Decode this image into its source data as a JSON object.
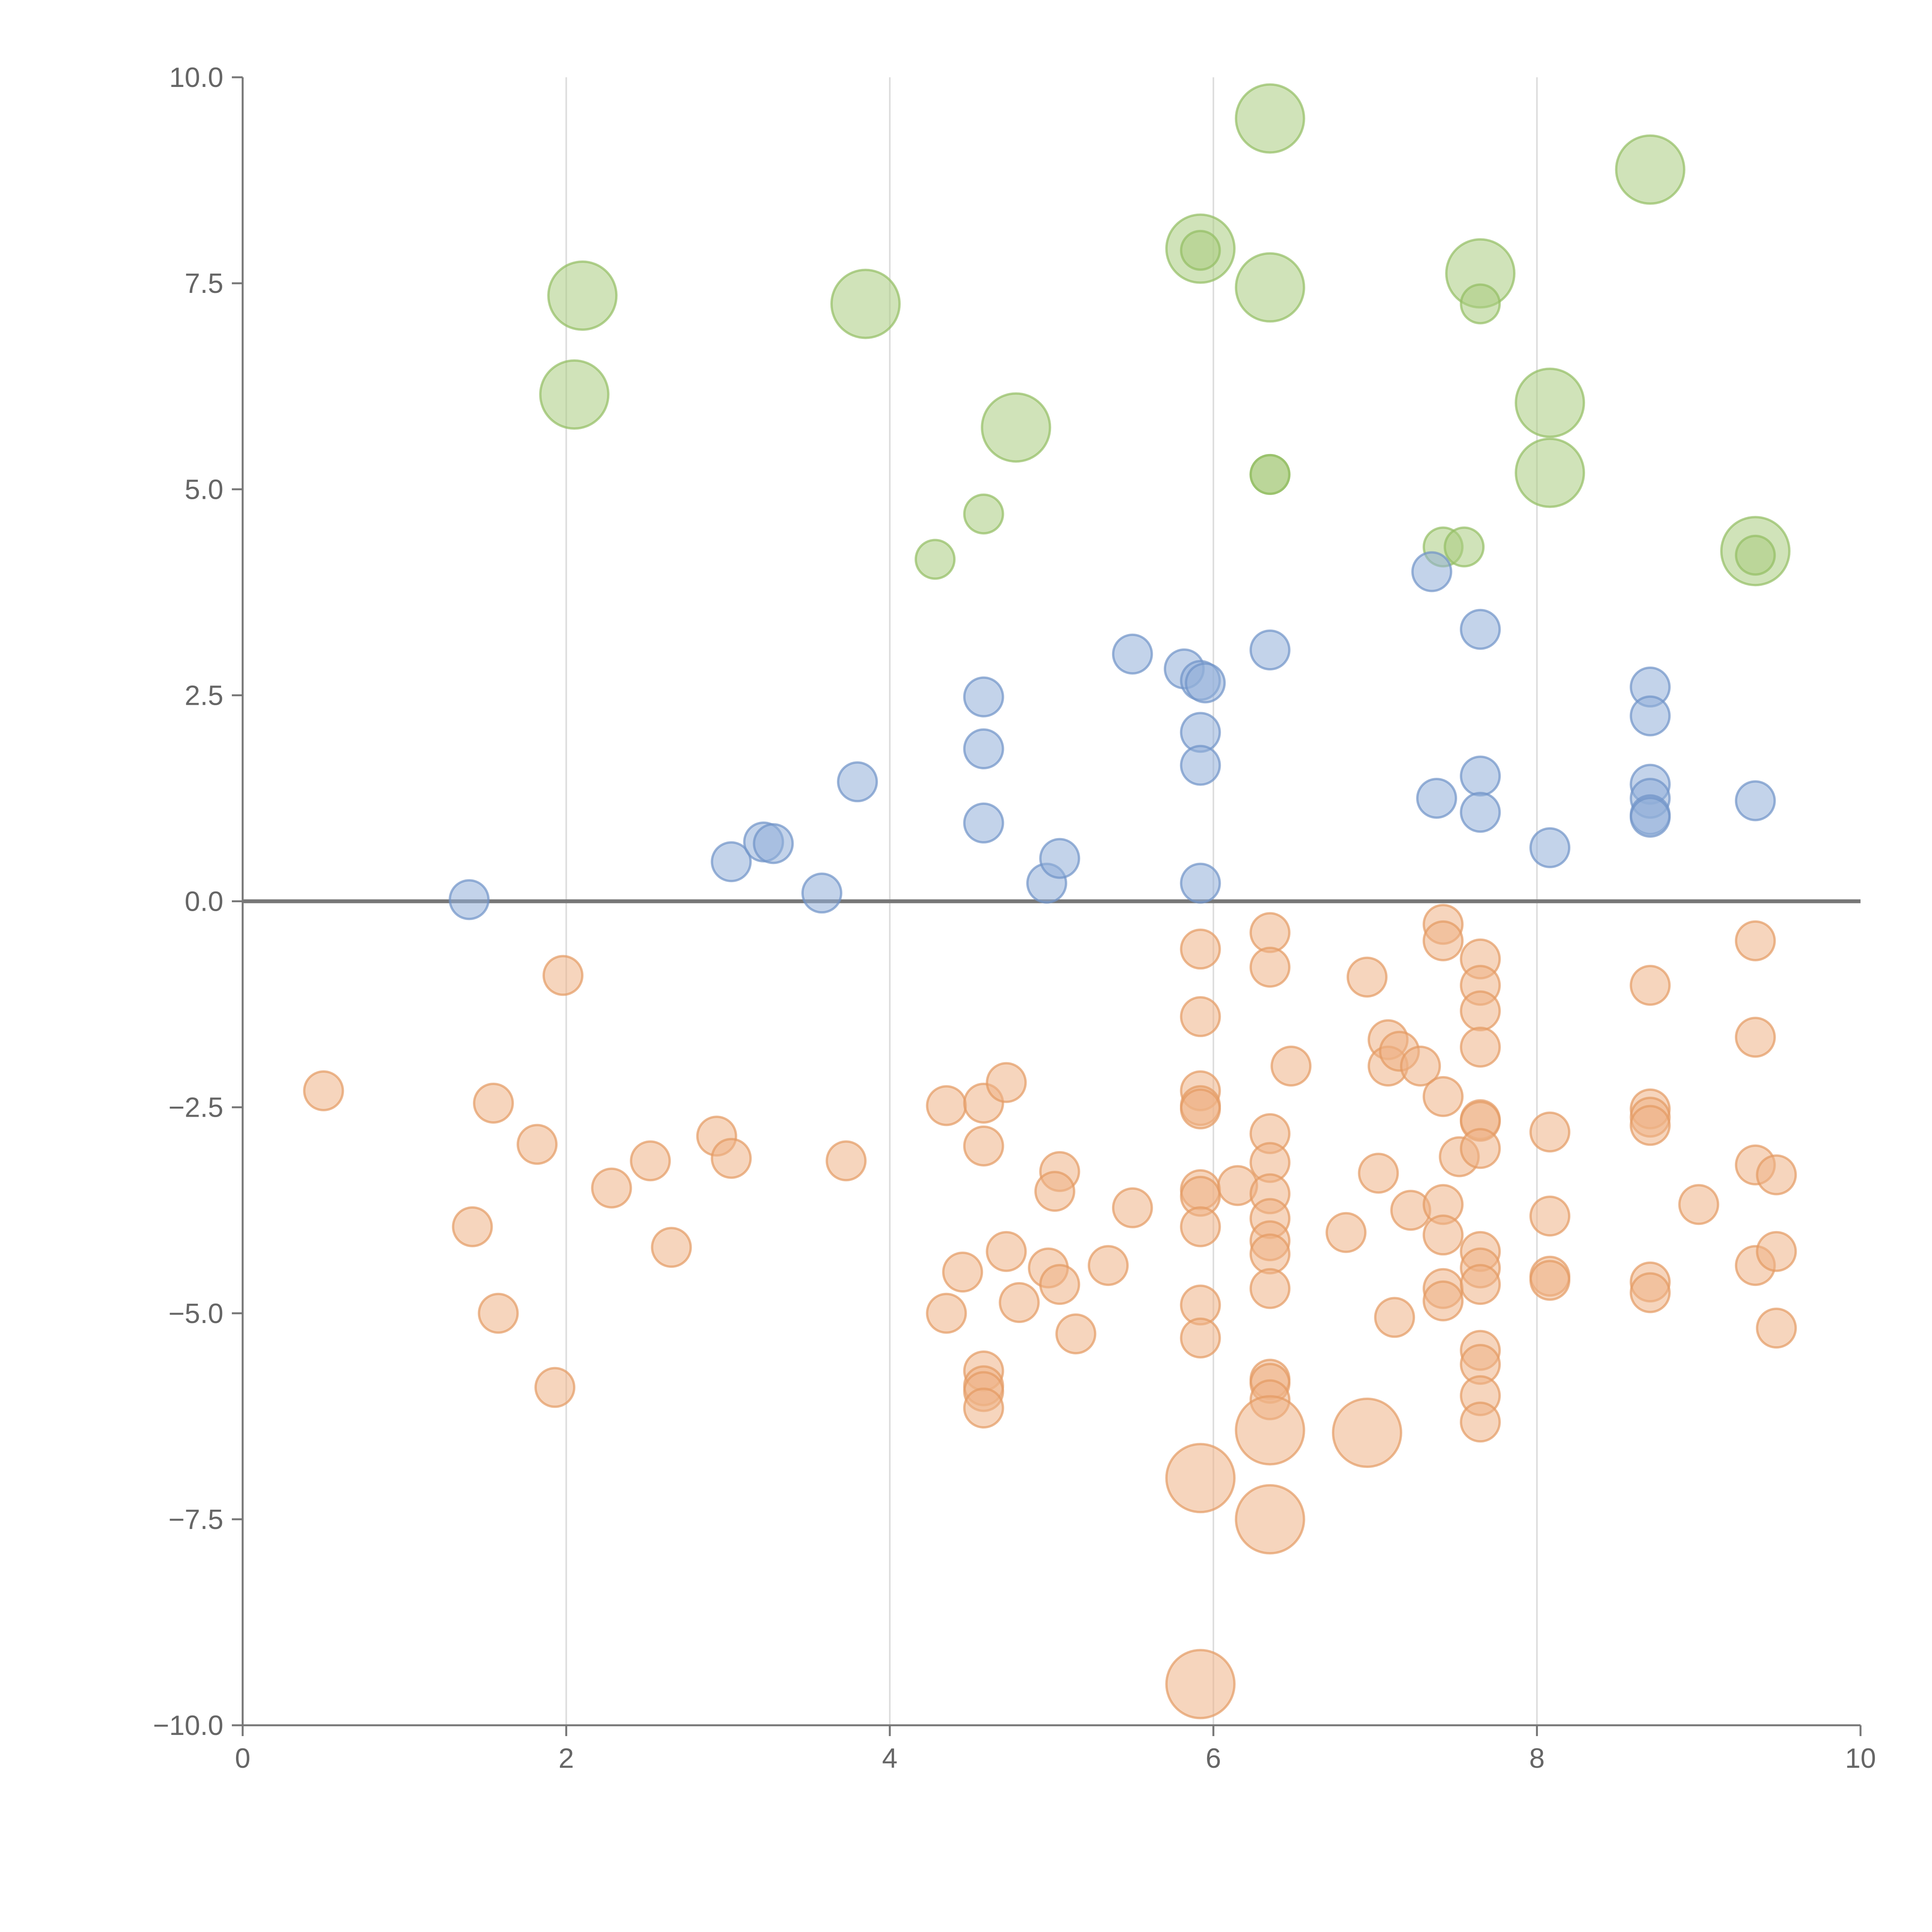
{
  "chart_data": {
    "type": "scatter",
    "title": "",
    "xlabel": "",
    "ylabel": "",
    "xlim": [
      0,
      10
    ],
    "ylim": [
      -10,
      10
    ],
    "x_ticks": [
      0,
      2,
      4,
      6,
      8,
      10
    ],
    "x_tick_labels": [
      "0",
      "2",
      "4",
      "6",
      "8",
      "10"
    ],
    "y_ticks": [
      -10,
      -7.5,
      -5,
      -2.5,
      0,
      2.5,
      5,
      7.5,
      10
    ],
    "y_tick_labels": [
      "−10.0",
      "−7.5",
      "−5.0",
      "−2.5",
      "0.0",
      "2.5",
      "5.0",
      "7.5",
      "10.0"
    ],
    "vertical_grid": true,
    "horizontal_grid": false,
    "zero_line": true,
    "legend": "none",
    "series": [
      {
        "name": "green",
        "color": "#a9cc80",
        "stroke": "#93bd62",
        "points": [
          [
            2.1,
            7.35,
            2
          ],
          [
            2.05,
            6.15,
            2
          ],
          [
            3.85,
            7.25,
            2
          ],
          [
            4.78,
            5.75,
            2
          ],
          [
            4.58,
            4.7,
            1
          ],
          [
            4.28,
            4.15,
            1
          ],
          [
            5.92,
            7.92,
            2
          ],
          [
            5.92,
            7.9,
            1
          ],
          [
            6.35,
            9.5,
            2
          ],
          [
            6.35,
            7.45,
            2
          ],
          [
            6.35,
            5.18,
            1
          ],
          [
            6.35,
            5.18,
            1
          ],
          [
            7.65,
            7.62,
            2
          ],
          [
            7.65,
            7.25,
            1
          ],
          [
            7.42,
            4.3,
            1
          ],
          [
            7.55,
            4.3,
            1
          ],
          [
            8.08,
            6.05,
            2
          ],
          [
            8.08,
            5.2,
            2
          ],
          [
            8.7,
            8.88,
            2
          ],
          [
            9.35,
            4.25,
            2
          ],
          [
            9.35,
            4.2,
            1
          ]
        ]
      },
      {
        "name": "blue",
        "color": "#92aed8",
        "stroke": "#6f93c8",
        "points": [
          [
            1.4,
            0.02,
            1
          ],
          [
            3.02,
            0.48,
            1
          ],
          [
            3.22,
            0.72,
            1
          ],
          [
            3.28,
            0.7,
            1
          ],
          [
            3.58,
            0.1,
            1
          ],
          [
            3.8,
            1.45,
            1
          ],
          [
            4.58,
            2.48,
            1
          ],
          [
            4.58,
            1.85,
            1
          ],
          [
            4.58,
            0.95,
            1
          ],
          [
            4.97,
            0.22,
            1
          ],
          [
            5.05,
            0.52,
            1
          ],
          [
            5.5,
            3.0,
            1
          ],
          [
            5.82,
            2.82,
            1
          ],
          [
            5.92,
            2.68,
            1
          ],
          [
            5.95,
            2.65,
            1
          ],
          [
            5.92,
            2.05,
            1
          ],
          [
            5.92,
            1.65,
            1
          ],
          [
            5.92,
            0.22,
            1
          ],
          [
            6.35,
            3.05,
            1
          ],
          [
            7.35,
            4.0,
            1
          ],
          [
            7.38,
            1.25,
            1
          ],
          [
            7.65,
            3.3,
            1
          ],
          [
            7.65,
            1.52,
            1
          ],
          [
            7.65,
            1.08,
            1
          ],
          [
            8.08,
            0.65,
            1
          ],
          [
            8.7,
            2.6,
            1
          ],
          [
            8.7,
            2.25,
            1
          ],
          [
            8.7,
            1.42,
            1
          ],
          [
            8.7,
            1.25,
            1
          ],
          [
            8.7,
            1.05,
            1
          ],
          [
            8.7,
            1.02,
            1
          ],
          [
            9.35,
            1.22,
            1
          ]
        ]
      },
      {
        "name": "orange",
        "color": "#efb387",
        "stroke": "#e49a62",
        "points": [
          [
            0.5,
            -2.3,
            1
          ],
          [
            1.42,
            -3.95,
            1
          ],
          [
            1.55,
            -2.45,
            1
          ],
          [
            1.58,
            -5.0,
            1
          ],
          [
            1.82,
            -2.95,
            1
          ],
          [
            1.98,
            -0.9,
            1
          ],
          [
            1.93,
            -5.9,
            1
          ],
          [
            2.28,
            -3.48,
            1
          ],
          [
            2.52,
            -3.15,
            1
          ],
          [
            2.65,
            -4.2,
            1
          ],
          [
            2.93,
            -2.85,
            1
          ],
          [
            3.02,
            -3.12,
            1
          ],
          [
            3.73,
            -3.15,
            1
          ],
          [
            4.35,
            -2.48,
            1
          ],
          [
            4.35,
            -5.0,
            1
          ],
          [
            4.45,
            -4.5,
            1
          ],
          [
            4.58,
            -2.45,
            1
          ],
          [
            4.58,
            -2.97,
            1
          ],
          [
            4.58,
            -5.7,
            1
          ],
          [
            4.58,
            -5.88,
            1
          ],
          [
            4.58,
            -5.95,
            1
          ],
          [
            4.58,
            -6.15,
            1
          ],
          [
            4.72,
            -2.2,
            1
          ],
          [
            4.72,
            -4.25,
            1
          ],
          [
            4.8,
            -4.87,
            1
          ],
          [
            4.98,
            -4.45,
            1
          ],
          [
            5.05,
            -3.28,
            1
          ],
          [
            5.02,
            -3.52,
            1
          ],
          [
            5.05,
            -4.65,
            1
          ],
          [
            5.15,
            -5.25,
            1
          ],
          [
            5.35,
            -4.42,
            1
          ],
          [
            5.5,
            -3.72,
            1
          ],
          [
            5.92,
            -0.58,
            1
          ],
          [
            5.92,
            -1.4,
            1
          ],
          [
            5.92,
            -2.3,
            1
          ],
          [
            5.92,
            -2.48,
            1
          ],
          [
            5.92,
            -2.52,
            1
          ],
          [
            5.92,
            -3.5,
            1
          ],
          [
            5.92,
            -3.58,
            1
          ],
          [
            5.92,
            -3.95,
            1
          ],
          [
            5.92,
            -4.9,
            1
          ],
          [
            5.92,
            -5.3,
            1
          ],
          [
            5.92,
            -7.0,
            2
          ],
          [
            5.92,
            -9.5,
            2
          ],
          [
            6.15,
            -3.45,
            1
          ],
          [
            6.35,
            -0.38,
            1
          ],
          [
            6.35,
            -0.8,
            1
          ],
          [
            6.35,
            -2.82,
            1
          ],
          [
            6.35,
            -3.17,
            1
          ],
          [
            6.35,
            -3.55,
            1
          ],
          [
            6.35,
            -3.85,
            1
          ],
          [
            6.35,
            -4.12,
            1
          ],
          [
            6.35,
            -4.28,
            1
          ],
          [
            6.35,
            -4.7,
            1
          ],
          [
            6.35,
            -5.8,
            1
          ],
          [
            6.35,
            -5.85,
            1
          ],
          [
            6.35,
            -6.05,
            1
          ],
          [
            6.35,
            -6.42,
            2
          ],
          [
            6.35,
            -7.5,
            2
          ],
          [
            6.48,
            -2.0,
            1
          ],
          [
            6.82,
            -4.02,
            1
          ],
          [
            6.95,
            -0.92,
            1
          ],
          [
            6.95,
            -6.45,
            2
          ],
          [
            7.02,
            -3.3,
            1
          ],
          [
            7.08,
            -1.68,
            1
          ],
          [
            7.08,
            -2.0,
            1
          ],
          [
            7.12,
            -5.05,
            1
          ],
          [
            7.15,
            -1.82,
            1
          ],
          [
            7.22,
            -3.75,
            1
          ],
          [
            7.28,
            -2.0,
            1
          ],
          [
            7.42,
            -0.28,
            1
          ],
          [
            7.42,
            -0.48,
            1
          ],
          [
            7.42,
            -2.37,
            1
          ],
          [
            7.42,
            -3.68,
            1
          ],
          [
            7.42,
            -4.05,
            1
          ],
          [
            7.42,
            -4.7,
            1
          ],
          [
            7.42,
            -4.85,
            1
          ],
          [
            7.52,
            -3.1,
            1
          ],
          [
            7.65,
            -0.7,
            1
          ],
          [
            7.65,
            -1.02,
            1
          ],
          [
            7.65,
            -1.33,
            1
          ],
          [
            7.65,
            -1.77,
            1
          ],
          [
            7.65,
            -2.65,
            1
          ],
          [
            7.65,
            -2.67,
            1
          ],
          [
            7.65,
            -3.0,
            1
          ],
          [
            7.65,
            -4.25,
            1
          ],
          [
            7.65,
            -4.45,
            1
          ],
          [
            7.65,
            -4.65,
            1
          ],
          [
            7.65,
            -5.45,
            1
          ],
          [
            7.65,
            -5.62,
            1
          ],
          [
            7.65,
            -6.0,
            1
          ],
          [
            7.65,
            -6.32,
            1
          ],
          [
            8.08,
            -2.8,
            1
          ],
          [
            8.08,
            -3.82,
            1
          ],
          [
            8.08,
            -4.55,
            1
          ],
          [
            8.08,
            -4.6,
            1
          ],
          [
            8.7,
            -1.02,
            1
          ],
          [
            8.7,
            -2.52,
            1
          ],
          [
            8.7,
            -2.62,
            1
          ],
          [
            8.7,
            -2.72,
            1
          ],
          [
            8.7,
            -4.62,
            1
          ],
          [
            8.7,
            -4.75,
            1
          ],
          [
            9.0,
            -3.68,
            1
          ],
          [
            9.35,
            -0.48,
            1
          ],
          [
            9.35,
            -1.65,
            1
          ],
          [
            9.35,
            -3.2,
            1
          ],
          [
            9.35,
            -4.42,
            1
          ],
          [
            9.48,
            -3.32,
            1
          ],
          [
            9.48,
            -4.25,
            1
          ],
          [
            9.48,
            -5.18,
            1
          ]
        ]
      }
    ]
  }
}
